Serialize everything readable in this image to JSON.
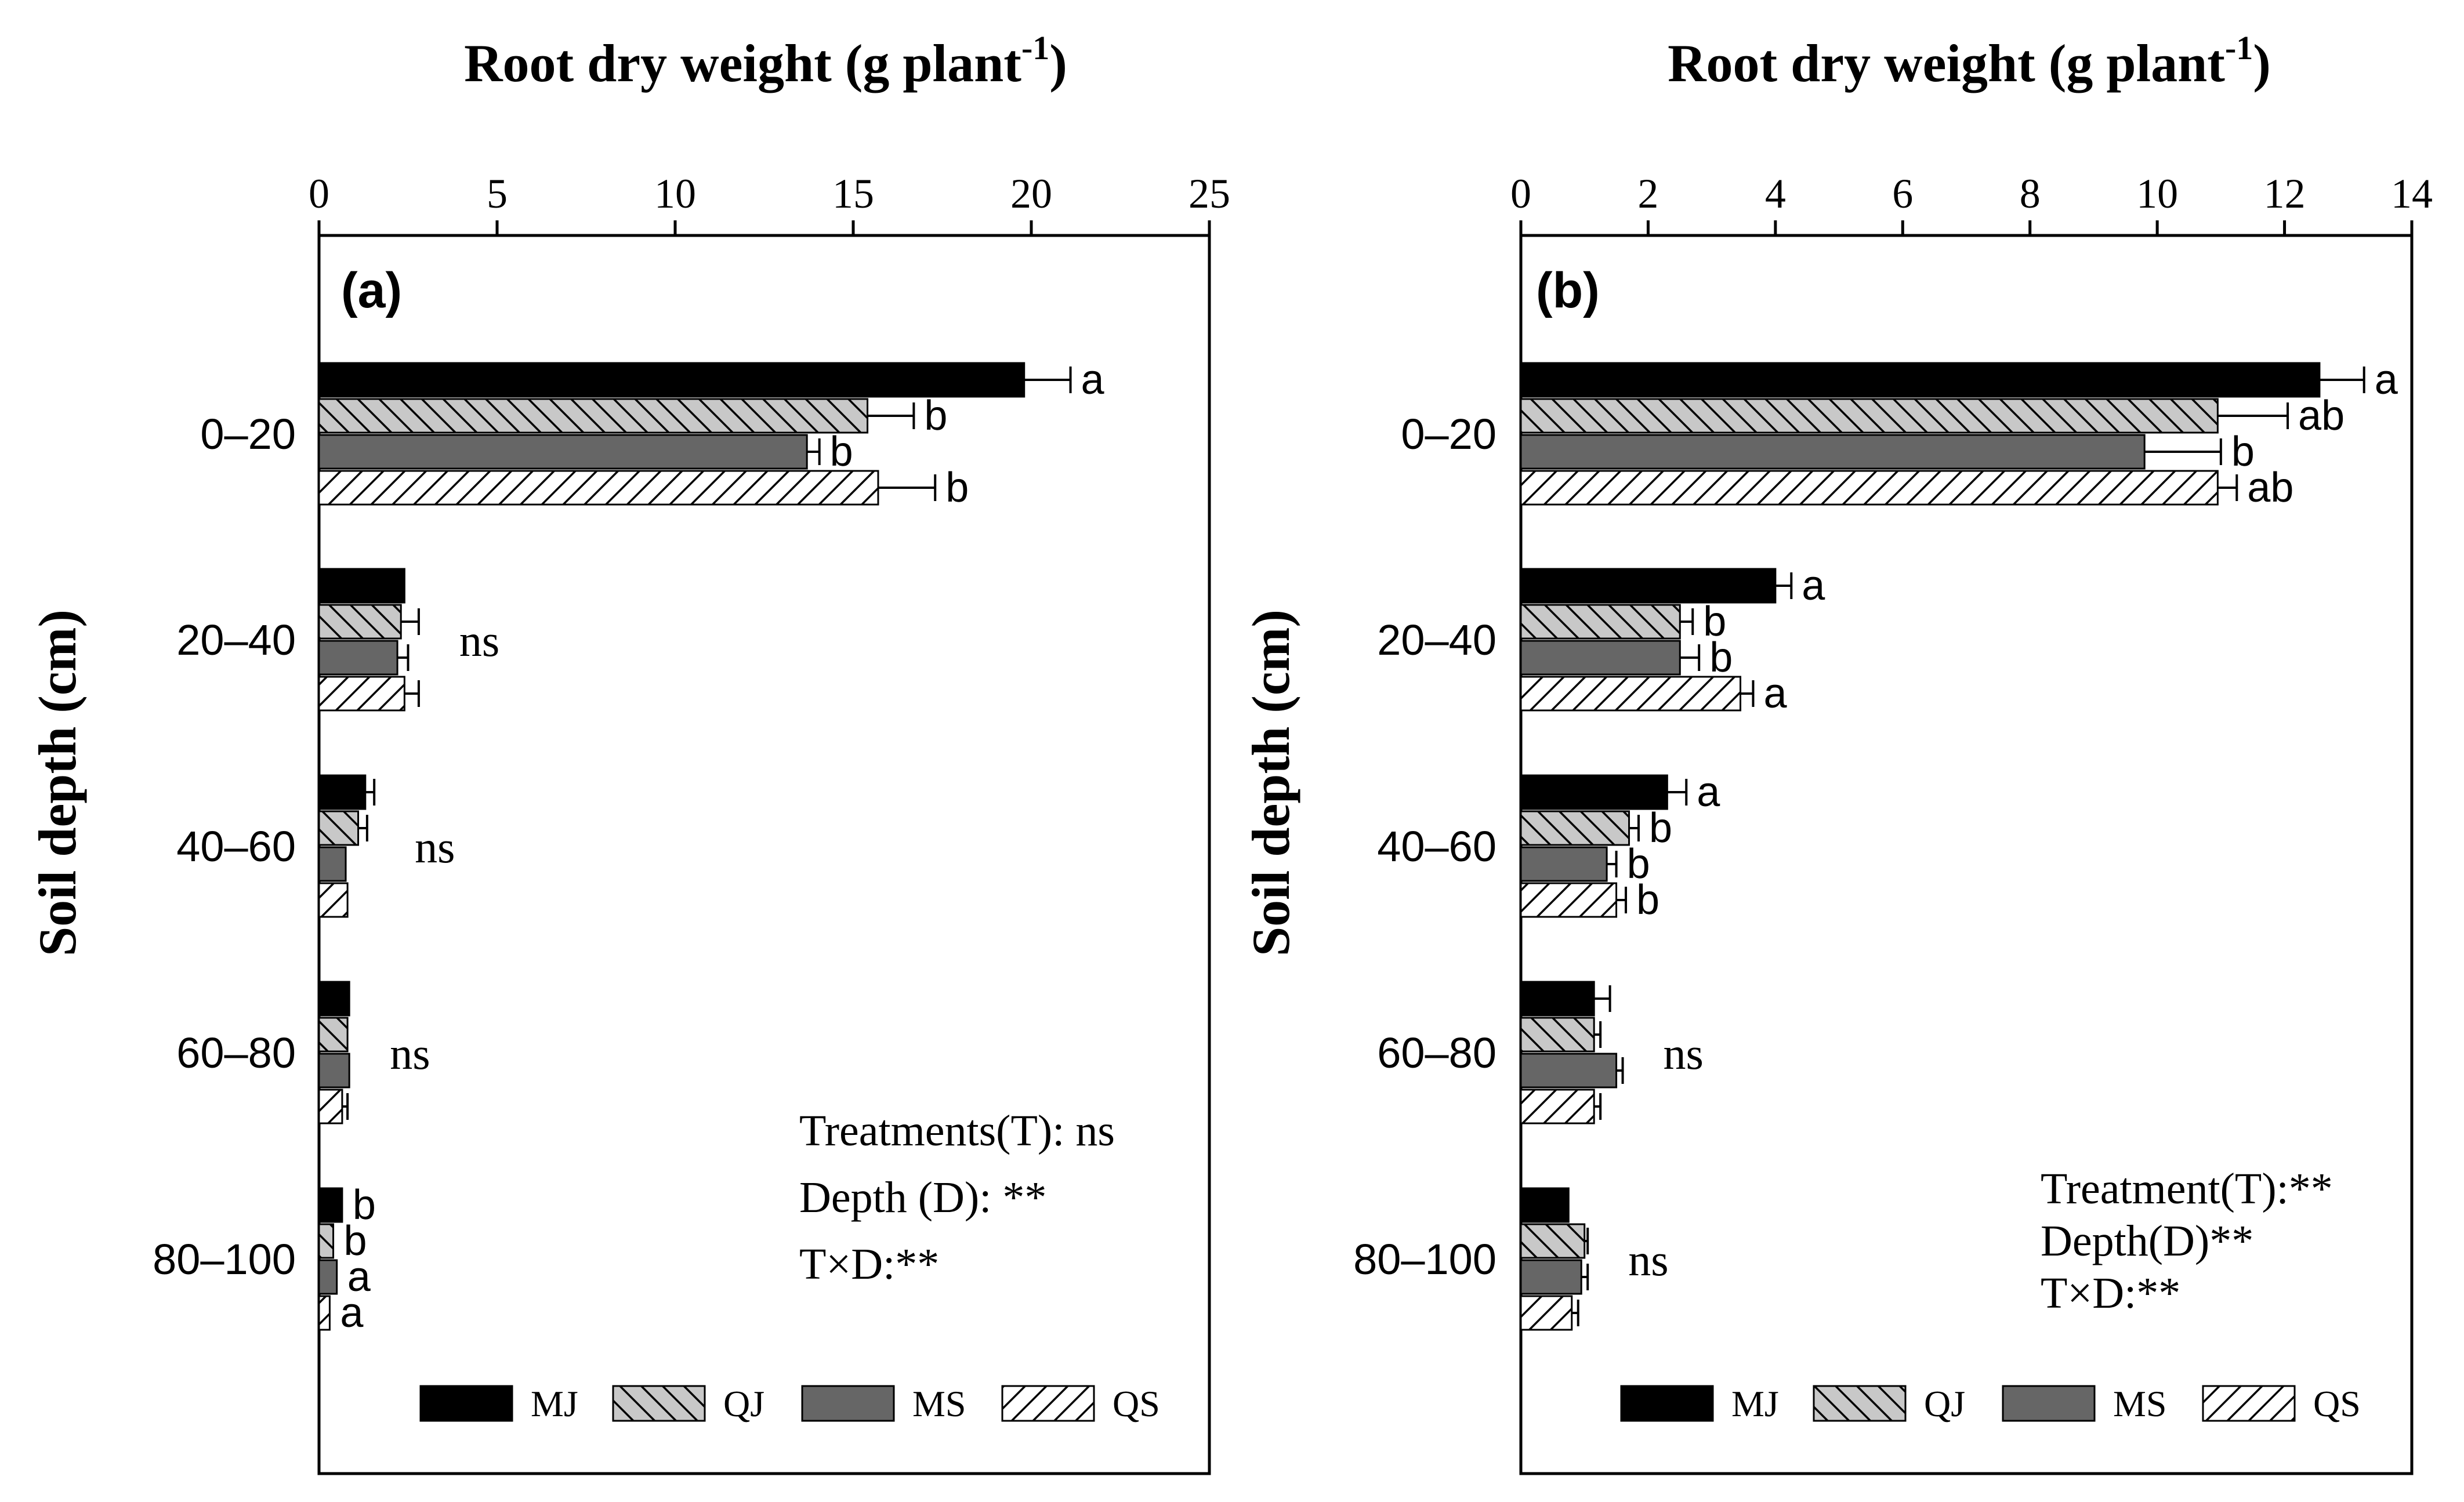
{
  "chart_data": [
    {
      "type": "bar",
      "orientation": "horizontal",
      "panel_label": "(a)",
      "title": "Root dry weight (g plant",
      "title_superscript": "-1",
      "title_close": ")",
      "xlabel": "Root dry weight (g plant-1)",
      "ylabel": "Soil depth (cm)",
      "xlim": [
        0,
        25
      ],
      "xticks": [
        0,
        5,
        10,
        15,
        20,
        25
      ],
      "categories": [
        "0–20",
        "20–40",
        "40–60",
        "60–80",
        "80–100"
      ],
      "series": [
        {
          "name": "MJ",
          "values": [
            19.8,
            2.4,
            1.3,
            0.85,
            0.65
          ],
          "errors": [
            1.3,
            0.0,
            0.25,
            0.0,
            0.0
          ]
        },
        {
          "name": "QJ",
          "values": [
            15.4,
            2.3,
            1.1,
            0.8,
            0.4
          ],
          "errors": [
            1.3,
            0.5,
            0.25,
            0.0,
            0.0
          ]
        },
        {
          "name": "MS",
          "values": [
            13.7,
            2.2,
            0.75,
            0.85,
            0.5
          ],
          "errors": [
            0.35,
            0.3,
            0.0,
            0.0,
            0.0
          ]
        },
        {
          "name": "QS",
          "values": [
            15.7,
            2.4,
            0.8,
            0.65,
            0.3
          ],
          "errors": [
            1.6,
            0.4,
            0.0,
            0.15,
            0.0
          ]
        }
      ],
      "letters": [
        [
          "a",
          "b",
          "b",
          "b"
        ],
        [],
        [],
        [],
        [
          "b",
          "b",
          "a",
          "a"
        ]
      ],
      "group_annotations": [
        "",
        "ns",
        "ns",
        "ns",
        ""
      ],
      "stats": [
        "Treatments(T): ns",
        "Depth (D): **",
        "T×D:**"
      ],
      "legend": [
        "MJ",
        "QJ",
        "MS",
        "QS"
      ],
      "legend_position": "bottom"
    },
    {
      "type": "bar",
      "orientation": "horizontal",
      "panel_label": "(b)",
      "title": "Root dry weight (g plant",
      "title_superscript": "-1",
      "title_close": ")",
      "xlabel": "Root dry weight (g plant-1)",
      "ylabel": "Soil depth (cm)",
      "xlim": [
        0,
        14
      ],
      "xticks": [
        0,
        2,
        4,
        6,
        8,
        10,
        12,
        14
      ],
      "categories": [
        "0–20",
        "20–40",
        "40–60",
        "60–80",
        "80–100"
      ],
      "series": [
        {
          "name": "MJ",
          "values": [
            12.55,
            4.0,
            2.3,
            1.15,
            0.75
          ],
          "errors": [
            0.7,
            0.25,
            0.3,
            0.25,
            0.0
          ]
        },
        {
          "name": "QJ",
          "values": [
            10.95,
            2.5,
            1.7,
            1.15,
            1.0
          ],
          "errors": [
            1.1,
            0.2,
            0.15,
            0.1,
            0.05
          ]
        },
        {
          "name": "MS",
          "values": [
            9.8,
            2.5,
            1.35,
            1.5,
            0.95
          ],
          "errors": [
            1.2,
            0.3,
            0.15,
            0.1,
            0.1
          ]
        },
        {
          "name": "QS",
          "values": [
            10.95,
            3.45,
            1.5,
            1.15,
            0.8
          ],
          "errors": [
            0.3,
            0.2,
            0.15,
            0.1,
            0.1
          ]
        }
      ],
      "letters": [
        [
          "a",
          "ab",
          "b",
          "ab"
        ],
        [
          "a",
          "b",
          "b",
          "a"
        ],
        [
          "a",
          "b",
          "b",
          "b"
        ],
        [],
        []
      ],
      "group_annotations": [
        "",
        "",
        "",
        "ns",
        "ns"
      ],
      "stats": [
        "Treatment(T):**",
        "Depth(D)**",
        "T×D:**"
      ],
      "legend": [
        "MJ",
        "QJ",
        "MS",
        "QS"
      ],
      "legend_position": "bottom"
    }
  ],
  "colors": {
    "MJ": "#000000",
    "QJ": "#c8c8c8",
    "MS": "#666666",
    "QS": "#ffffff",
    "axis": "#000000"
  }
}
